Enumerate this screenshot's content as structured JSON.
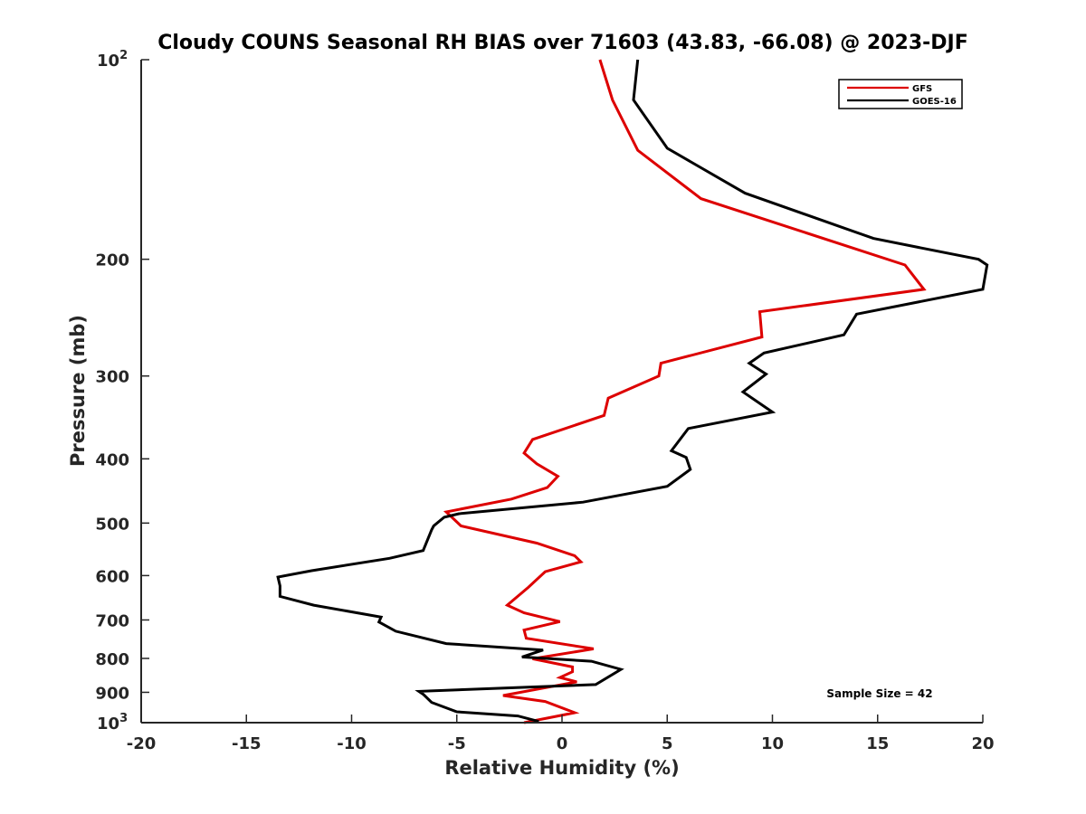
{
  "chart_data": {
    "type": "line",
    "title": "Cloudy COUNS Seasonal RH BIAS over 71603 (43.83, -66.08) @ 2023-DJF",
    "xlabel": "Relative Humidity (%)",
    "ylabel": "Pressure (mb)",
    "xlim": [
      -20,
      20
    ],
    "ylim": [
      100,
      1000
    ],
    "y_scale": "log",
    "y_reversed": true,
    "x_ticks": [
      -20,
      -15,
      -10,
      -5,
      0,
      5,
      10,
      15,
      20
    ],
    "x_tick_labels": [
      "-20",
      "-15",
      "-10",
      "-5",
      "0",
      "5",
      "10",
      "15",
      "20"
    ],
    "y_ticks": [
      {
        "value": 100,
        "base": "10",
        "exp": "2"
      },
      {
        "value": 200,
        "label": "200"
      },
      {
        "value": 300,
        "label": "300"
      },
      {
        "value": 400,
        "label": "400"
      },
      {
        "value": 500,
        "label": "500"
      },
      {
        "value": 600,
        "label": "600"
      },
      {
        "value": 700,
        "label": "700"
      },
      {
        "value": 800,
        "label": "800"
      },
      {
        "value": 900,
        "label": "900"
      },
      {
        "value": 1000,
        "base": "10",
        "exp": "3"
      }
    ],
    "legend_position": "top-right",
    "annotation": "Sample Size = 42",
    "series": [
      {
        "name": "GFS",
        "color": "#dd0000",
        "points": [
          [
            1.8,
            100
          ],
          [
            2.4,
            115
          ],
          [
            3.6,
            137
          ],
          [
            6.6,
            162
          ],
          [
            16.3,
            204
          ],
          [
            17.2,
            222
          ],
          [
            9.4,
            240
          ],
          [
            9.5,
            262
          ],
          [
            4.7,
            287
          ],
          [
            4.6,
            300
          ],
          [
            2.2,
            324
          ],
          [
            2.0,
            344
          ],
          [
            -1.4,
            374
          ],
          [
            -1.8,
            392
          ],
          [
            -1.2,
            407
          ],
          [
            -0.2,
            425
          ],
          [
            -0.7,
            442
          ],
          [
            -2.4,
            460
          ],
          [
            -5.5,
            481
          ],
          [
            -4.8,
            505
          ],
          [
            -1.2,
            536
          ],
          [
            0.6,
            560
          ],
          [
            0.9,
            572
          ],
          [
            -0.8,
            592
          ],
          [
            -1.6,
            625
          ],
          [
            -2.6,
            665
          ],
          [
            -1.8,
            683
          ],
          [
            -0.1,
            704
          ],
          [
            -1.8,
            725
          ],
          [
            -1.7,
            746
          ],
          [
            1.5,
            774
          ],
          [
            -1.4,
            801
          ],
          [
            0.5,
            824
          ],
          [
            0.5,
            838
          ],
          [
            -0.1,
            855
          ],
          [
            0.7,
            868
          ],
          [
            -2.8,
            910
          ],
          [
            -0.8,
            929
          ],
          [
            0.6,
            966
          ],
          [
            -1.8,
            1000
          ]
        ]
      },
      {
        "name": "GOES-16",
        "color": "#000000",
        "points": [
          [
            3.6,
            100
          ],
          [
            3.4,
            115
          ],
          [
            5.0,
            136
          ],
          [
            8.7,
            159
          ],
          [
            14.8,
            186
          ],
          [
            19.8,
            200
          ],
          [
            20.2,
            204
          ],
          [
            20.0,
            222
          ],
          [
            14.0,
            242
          ],
          [
            13.4,
            260
          ],
          [
            9.6,
            277
          ],
          [
            8.9,
            287
          ],
          [
            9.7,
            298
          ],
          [
            8.6,
            317
          ],
          [
            10.0,
            340
          ],
          [
            6.0,
            360
          ],
          [
            5.2,
            389
          ],
          [
            5.9,
            398
          ],
          [
            6.1,
            415
          ],
          [
            5.0,
            440
          ],
          [
            1.0,
            465
          ],
          [
            -4.9,
            484
          ],
          [
            -5.6,
            490
          ],
          [
            -6.1,
            505
          ],
          [
            -6.2,
            512
          ],
          [
            -6.6,
            550
          ],
          [
            -8.2,
            565
          ],
          [
            -11.9,
            590
          ],
          [
            -13.5,
            603
          ],
          [
            -13.4,
            622
          ],
          [
            -13.4,
            645
          ],
          [
            -11.8,
            665
          ],
          [
            -8.6,
            693
          ],
          [
            -8.7,
            705
          ],
          [
            -7.9,
            728
          ],
          [
            -5.5,
            760
          ],
          [
            -0.9,
            777
          ],
          [
            -1.9,
            796
          ],
          [
            1.4,
            808
          ],
          [
            2.8,
            831
          ],
          [
            1.6,
            876
          ],
          [
            -6.8,
            897
          ],
          [
            -6.6,
            906
          ],
          [
            -6.2,
            932
          ],
          [
            -5.0,
            963
          ],
          [
            -2.1,
            977
          ],
          [
            -1.1,
            996
          ]
        ]
      }
    ]
  }
}
